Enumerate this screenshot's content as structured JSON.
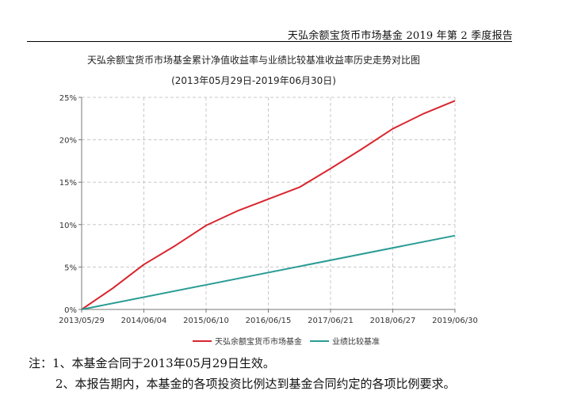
{
  "header": {
    "title": "天弘余额宝货币市场基金 2019 年第 2 季度报告"
  },
  "chart_data": {
    "type": "line",
    "title": "天弘余额宝货币市场基金累计净值收益率与业绩比较基准收益率历史走势对比图",
    "subtitle": "(2013年05月29日-2019年06月30日)",
    "x_ticks": [
      "2013/05/29",
      "2014/06/04",
      "2015/06/10",
      "2016/06/15",
      "2017/06/21",
      "2018/06/27",
      "2019/06/30"
    ],
    "y_ticks": [
      "0%",
      "5%",
      "10%",
      "15%",
      "20%",
      "25%"
    ],
    "ylim": [
      0,
      25
    ],
    "grid": true,
    "legend_position": "bottom",
    "series": [
      {
        "name": "天弘余额宝货币市场基金",
        "color": "#d9262e",
        "x": [
          0,
          0.5,
          1,
          1.5,
          2,
          2.5,
          3,
          3.5,
          4,
          4.5,
          5,
          5.5,
          6
        ],
        "values": [
          0,
          2.5,
          5.3,
          7.5,
          9.9,
          11.6,
          13.0,
          14.4,
          16.6,
          18.9,
          21.3,
          23.1,
          24.6
        ]
      },
      {
        "name": "业绩比较基准",
        "color": "#2a9c94",
        "x": [
          0,
          6
        ],
        "values": [
          0,
          8.7
        ]
      }
    ]
  },
  "notes": {
    "line1": "注：1、本基金合同于2013年05月29日生效。",
    "line2": "2、本报告期内，本基金的各项投资比例达到基金合同约定的各项比例要求。"
  }
}
